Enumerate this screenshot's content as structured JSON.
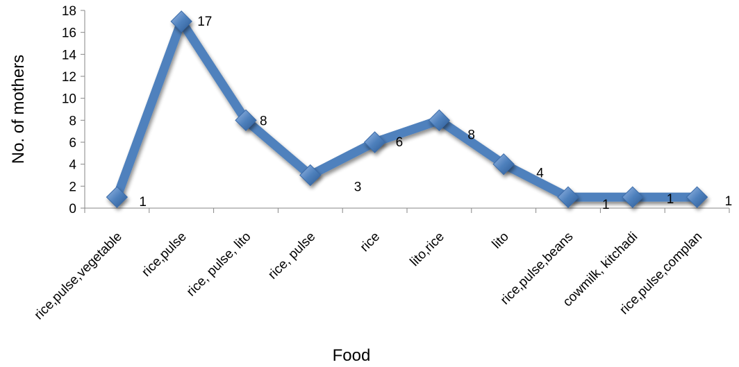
{
  "chart_data": {
    "type": "line",
    "xlabel": "Food",
    "ylabel": "No. of  mothers",
    "ylim": [
      0,
      18
    ],
    "ytick_step": 2,
    "grid": false,
    "categories": [
      "rice,pulse,vegetable",
      "rice,pulse",
      "rice, pulse, lito",
      "rice, pulse",
      "rice",
      "lito,rice",
      "lito",
      "rice,pulse,beans",
      "cowmilk, kitchadi",
      "rice,pulse,complan"
    ],
    "series": [
      {
        "values": [
          1,
          17,
          8,
          3,
          6,
          8,
          4,
          1,
          1,
          1
        ],
        "color": "#4F81BD",
        "marker": "diamond"
      }
    ],
    "data_labels": [
      "1",
      "17",
      "8",
      "3",
      "6",
      "8",
      "4",
      "1",
      "1",
      "1"
    ]
  }
}
